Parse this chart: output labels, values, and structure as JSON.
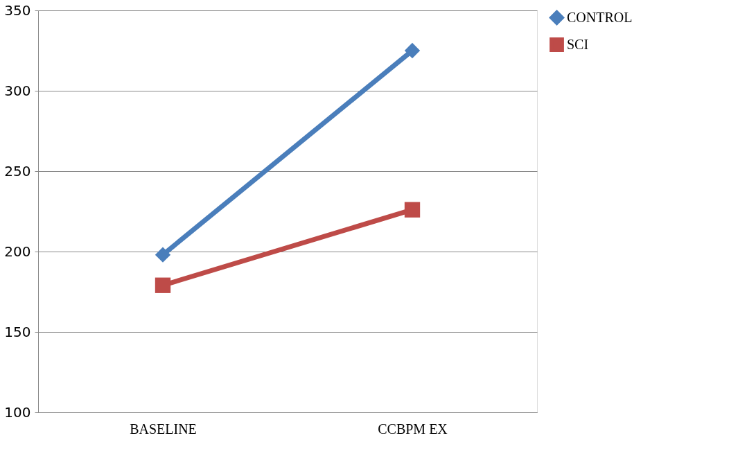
{
  "chart_data": {
    "type": "line",
    "categories": [
      "BASELINE",
      "CCBPM EX"
    ],
    "series": [
      {
        "name": "CONTROL",
        "color": "#4a7ebb",
        "values": [
          198,
          325
        ],
        "marker": "diamond"
      },
      {
        "name": "SCI",
        "color": "#be4b48",
        "values": [
          179,
          226
        ],
        "marker": "square"
      }
    ],
    "ylim": [
      100,
      350
    ],
    "yticks": [
      100,
      150,
      200,
      250,
      300,
      350
    ],
    "grid": "y",
    "legend": "right",
    "line_style": "solid"
  }
}
